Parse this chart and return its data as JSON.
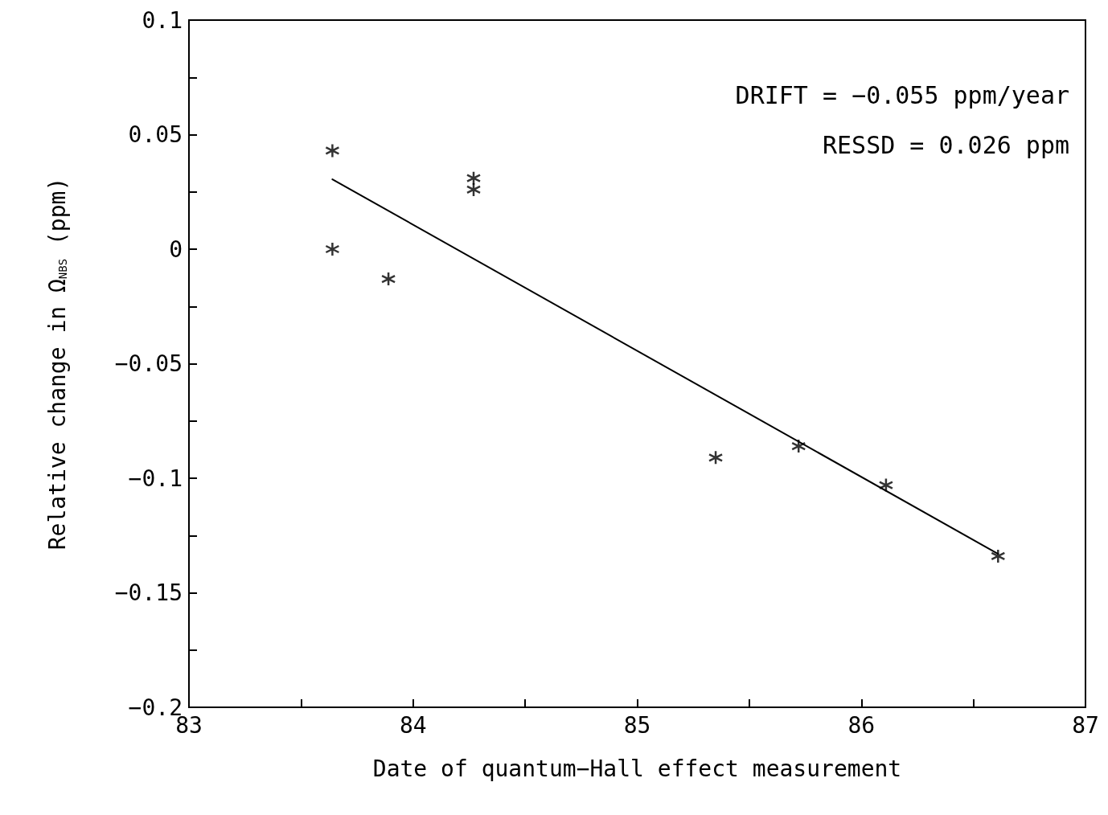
{
  "chart_data": {
    "type": "scatter",
    "xlabel": "Date of quantum−Hall effect measurement",
    "ylabel": "Relative change in Ω$_{NBS}$ (ppm)",
    "xlim": [
      83,
      87
    ],
    "xticks": [
      83,
      {
        "value": 83.5,
        "label": null
      },
      84,
      {
        "value": 84.5,
        "label": null
      },
      85,
      {
        "value": 85.5,
        "label": null
      },
      86,
      {
        "value": 86.5,
        "label": null
      },
      87
    ],
    "ylim": [
      -0.2,
      0.1
    ],
    "yticks": [
      {
        "value": -0.2,
        "label": "−0.2"
      },
      {
        "value": -0.175,
        "label": null
      },
      {
        "value": -0.15,
        "label": "−0.15"
      },
      {
        "value": -0.125,
        "label": null
      },
      {
        "value": -0.1,
        "label": "−0.1"
      },
      {
        "value": -0.075,
        "label": null
      },
      {
        "value": -0.05,
        "label": "−0.05"
      },
      {
        "value": -0.025,
        "label": null
      },
      0,
      {
        "value": 0.025,
        "label": null
      },
      0.05,
      {
        "value": 0.075,
        "label": null
      },
      0.1
    ],
    "grid": false,
    "marker": "cross",
    "series": [
      {
        "color": "#000000",
        "x": [
          83.64,
          83.64,
          83.89,
          84.27,
          84.27,
          85.35,
          85.72,
          86.11,
          86.61
        ],
        "values": [
          0.043,
          0.0,
          -0.013,
          0.031,
          0.026,
          -0.091,
          -0.086,
          -0.103,
          -0.134
        ]
      },
      {
        "type": "line",
        "color": "#000000",
        "marker": "none",
        "x": [
          83.64,
          86.61
        ],
        "values": [
          0.0305,
          -0.133
        ]
      }
    ],
    "annotations": [
      "DRIFT = −0.055 ppm/year",
      "RESSD = 0.026 ppm"
    ]
  }
}
